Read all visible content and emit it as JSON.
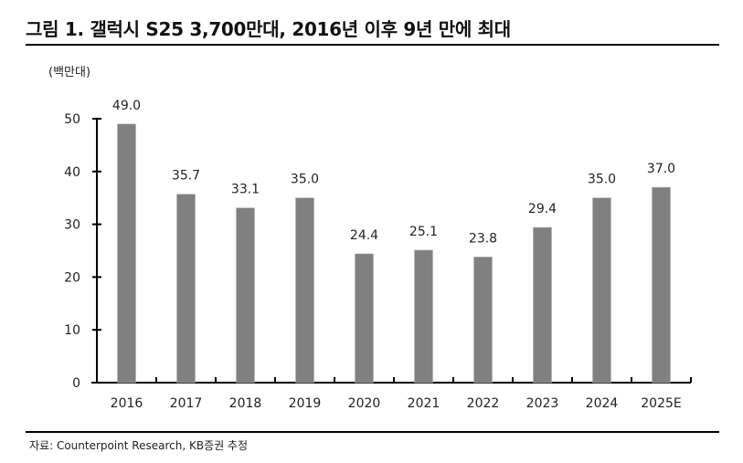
{
  "title": "그림 1. 갤럭시 S25 3,700만대, 2016년 이후 9년 만에 최대",
  "unit_label": "(백만대)",
  "source": "자료: Counterpoint Research, KB증권 추정",
  "colors": {
    "bar": "#808080",
    "axis": "#000000",
    "text": "#222222"
  },
  "chart_data": {
    "type": "bar",
    "title": "그림 1. 갤럭시 S25 3,700만대, 2016년 이후 9년 만에 최대",
    "xlabel": "",
    "ylabel": "(백만대)",
    "categories": [
      "2016",
      "2017",
      "2018",
      "2019",
      "2020",
      "2021",
      "2022",
      "2023",
      "2024",
      "2025E"
    ],
    "values": [
      49.0,
      35.7,
      33.1,
      35.0,
      24.4,
      25.1,
      23.8,
      29.4,
      35.0,
      37.0
    ],
    "value_labels": [
      "49.0",
      "35.7",
      "33.1",
      "35.0",
      "24.4",
      "25.1",
      "23.8",
      "29.4",
      "35.0",
      "37.0"
    ],
    "ylim": [
      0,
      50
    ],
    "yticks": [
      0,
      10,
      20,
      30,
      40,
      50
    ],
    "grid": false,
    "legend": null
  }
}
